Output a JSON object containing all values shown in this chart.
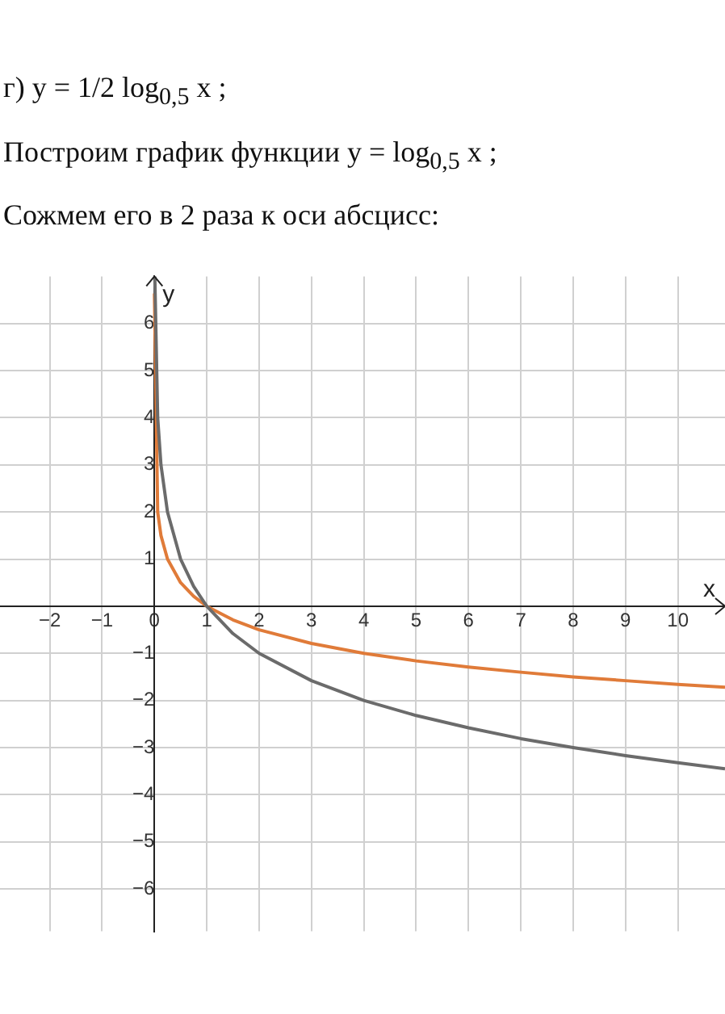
{
  "chart_data": {
    "type": "line",
    "title": "г) y = 1/2 log$_{0,5}$ x ;",
    "subtitle": "Построим график функции y = log$_{0,5}$ x ;",
    "annotations": [
      "Сожмем его в 2 раза к оси абсцисс:"
    ],
    "xlabel": "x",
    "ylabel": "y",
    "xlim": [
      -2.95,
      10.9
    ],
    "ylim": [
      -6.9,
      7.0
    ],
    "xticks": [
      -2,
      -1,
      0,
      1,
      2,
      3,
      4,
      5,
      6,
      7,
      8,
      9,
      10
    ],
    "yticks": [
      -6,
      -5,
      -4,
      -3,
      -2,
      -1,
      1,
      2,
      3,
      4,
      5,
      6
    ],
    "grid": true,
    "legend": false,
    "series": [
      {
        "color": "#6b6b6b",
        "x": [
          0.0078,
          0.0625,
          0.125,
          0.25,
          0.5,
          0.75,
          1,
          1.5,
          2,
          3,
          4,
          5,
          6,
          7,
          8,
          9,
          10,
          10.9
        ],
        "values": [
          7.0,
          4.0,
          3.0,
          2.0,
          1.0,
          0.42,
          0,
          -0.58,
          -1.0,
          -1.58,
          -2.0,
          -2.32,
          -2.58,
          -2.81,
          -3.0,
          -3.17,
          -3.32,
          -3.45
        ]
      },
      {
        "color": "#e07b39",
        "x": [
          0.0001,
          0.0625,
          0.125,
          0.25,
          0.5,
          0.75,
          1,
          1.5,
          2,
          3,
          4,
          5,
          6,
          7,
          8,
          9,
          10,
          10.9
        ],
        "values": [
          6.64,
          2.0,
          1.5,
          1.0,
          0.5,
          0.21,
          0,
          -0.29,
          -0.5,
          -0.79,
          -1.0,
          -1.16,
          -1.29,
          -1.4,
          -1.5,
          -1.58,
          -1.66,
          -1.72
        ]
      }
    ]
  }
}
